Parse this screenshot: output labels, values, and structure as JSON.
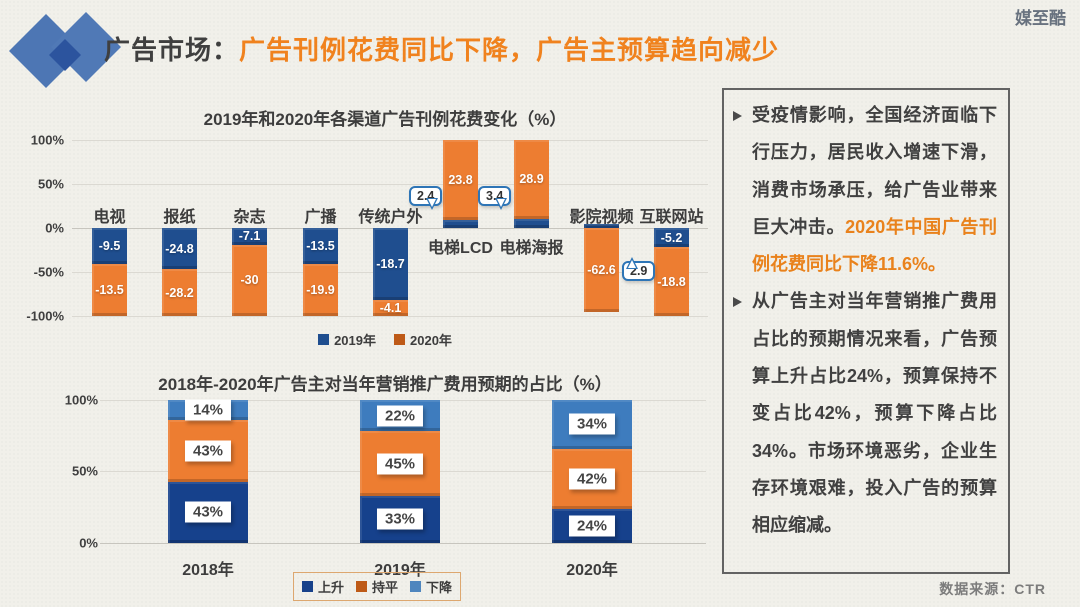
{
  "slide": {
    "title_prefix": "广告市场：",
    "title_highlight": "广告刊例花费同比下降，广告主预算趋向减少",
    "watermark": "媒至酷",
    "source": "数据来源：CTR"
  },
  "chart_data": [
    {
      "type": "bar",
      "title": "2019年和2020年各渠道广告刊例花费变化（%）",
      "categories": [
        "电视",
        "报纸",
        "杂志",
        "广播",
        "传统户外",
        "电梯LCD",
        "电梯海报",
        "影院视频",
        "互联网站"
      ],
      "series": [
        {
          "name": "2019年",
          "color": "#1F4E8F",
          "legend_color": "#1F4E8F",
          "values": [
            -9.5,
            -24.8,
            -7.1,
            -13.5,
            -18.7,
            2.4,
            3.4,
            2.9,
            -5.2
          ]
        },
        {
          "name": "2020年",
          "color": "#ED7D31",
          "legend_color": "#BE5A17",
          "values": [
            -13.5,
            -28.2,
            -30,
            -19.9,
            -4.1,
            23.8,
            28.9,
            -62.6,
            -18.8
          ]
        }
      ],
      "y_ticks": [
        "100%",
        "50%",
        "0%",
        "-50%",
        "-100%"
      ],
      "ylim": [
        -100,
        100
      ],
      "grid": true,
      "legend_position": "bottom",
      "callouts": [
        {
          "value": "2.4",
          "category": "电梯LCD",
          "series": "2019年"
        },
        {
          "value": "3.4",
          "category": "电梯海报",
          "series": "2019年"
        },
        {
          "value": "2.9",
          "category": "影院视频",
          "series": "2019年"
        }
      ]
    },
    {
      "type": "bar",
      "subtype": "stacked-percent",
      "title": "2018年-2020年广告主对当年营销推广费用预期的占比（%）",
      "categories": [
        "2018年",
        "2019年",
        "2020年"
      ],
      "series": [
        {
          "name": "上升",
          "color": "#16418C",
          "legend_color": "#17418A",
          "values": [
            43,
            33,
            24
          ]
        },
        {
          "name": "持平",
          "color": "#ED7D31",
          "legend_color": "#BE5A17",
          "values": [
            43,
            45,
            42
          ]
        },
        {
          "name": "下降",
          "color": "#3E7CBE",
          "legend_color": "#4F86BE",
          "values": [
            14,
            22,
            34
          ]
        }
      ],
      "y_ticks": [
        "100%",
        "50%",
        "0%"
      ],
      "ylim": [
        0,
        100
      ],
      "grid": true,
      "legend_position": "bottom",
      "label_suffix": "%"
    }
  ],
  "panel": {
    "bullets": [
      {
        "text": "受疫情影响，全国经济面临下行压力，居民收入增速下滑，消费市场承压，给广告业带来巨大冲击。",
        "highlight": "2020年中国广告刊例花费同比下降11.6%。"
      },
      {
        "text": "从广告主对当年营销推广费用占比的预期情况来看，广告预算上升占比24%，预算保持不变占比42%，预算下降占比34%。市场环境恶劣，企业生存环境艰难，投入广告的预算相应缩减。",
        "highlight": ""
      }
    ]
  }
}
